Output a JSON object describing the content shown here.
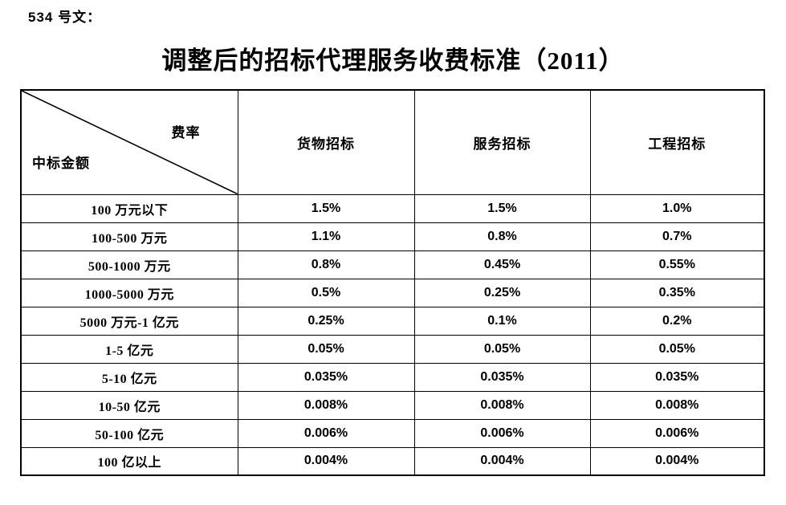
{
  "doc_number": "534 号文：",
  "title": "调整后的招标代理服务收费标准（2011）",
  "table": {
    "corner": {
      "top_right": "费率",
      "bottom_left": "中标金额"
    },
    "columns": [
      "货物招标",
      "服务招标",
      "工程招标"
    ],
    "rows": [
      {
        "label": "100 万元以下",
        "values": [
          "1.5%",
          "1.5%",
          "1.0%"
        ]
      },
      {
        "label": "100-500 万元",
        "values": [
          "1.1%",
          "0.8%",
          "0.7%"
        ]
      },
      {
        "label": "500-1000 万元",
        "values": [
          "0.8%",
          "0.45%",
          "0.55%"
        ]
      },
      {
        "label": "1000-5000 万元",
        "values": [
          "0.5%",
          "0.25%",
          "0.35%"
        ]
      },
      {
        "label": "5000 万元-1 亿元",
        "values": [
          "0.25%",
          "0.1%",
          "0.2%"
        ]
      },
      {
        "label": "1-5 亿元",
        "values": [
          "0.05%",
          "0.05%",
          "0.05%"
        ]
      },
      {
        "label": "5-10 亿元",
        "values": [
          "0.035%",
          "0.035%",
          "0.035%"
        ]
      },
      {
        "label": "10-50 亿元",
        "values": [
          "0.008%",
          "0.008%",
          "0.008%"
        ]
      },
      {
        "label": "50-100 亿元",
        "values": [
          "0.006%",
          "0.006%",
          "0.006%"
        ]
      },
      {
        "label": "100 亿以上",
        "values": [
          "0.004%",
          "0.004%",
          "0.004%"
        ]
      }
    ]
  },
  "colors": {
    "text": "#000000",
    "border": "#000000",
    "background": "#ffffff"
  }
}
